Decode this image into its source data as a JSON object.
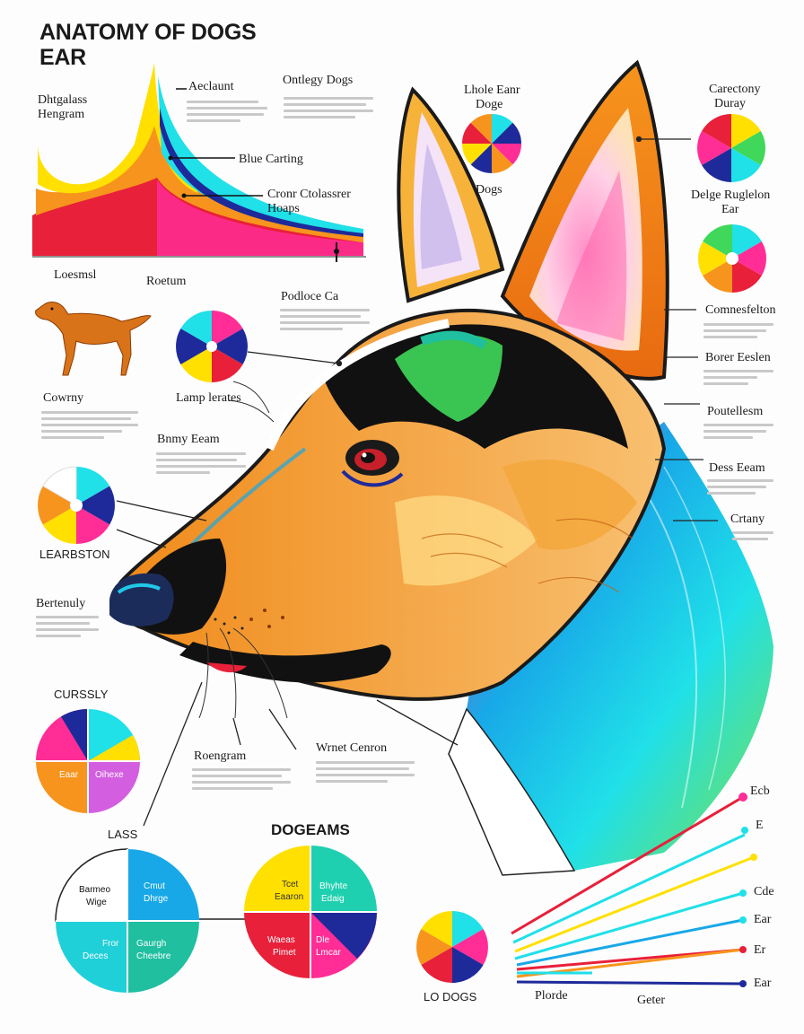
{
  "title_line1": "ANATOMY OF DOGS",
  "title_line2": "EAR",
  "labels": {
    "histogram_1": "Dhtgalass",
    "histogram_2": "Hengram",
    "aeclaunt": "Aeclaunt",
    "ontlegy": "Ontlegy Dogs",
    "blue_carting": "Blue Carting",
    "cronr_1": "Cronr Ctolassrer",
    "cronr_2": "Hoaps",
    "loesmsl": "Loesmsl",
    "roetum": "Roetum",
    "lhole_1": "Lhole Eanr",
    "lhole_2": "Doge",
    "dogs": "Dogs",
    "carectony_1": "Carectony",
    "carectony_2": "Duray",
    "delge_1": "Delge Ruglelon",
    "delge_2": "Ear",
    "podloce": "Podloce Ca",
    "comnesfelton": "Comnesfelton",
    "cowrny": "Cowrny",
    "lamp": "Lamp lerates",
    "borer": "Borer Eeslen",
    "poutellesm": "Poutellesm",
    "bnmy": "Bnmy Eeam",
    "dess": "Dess Eeam",
    "crtany": "Crtany",
    "learbston": "LEARBSTON",
    "bertenuly": "Bertenuly",
    "curssly": "CURSSLY",
    "roengram": "Roengram",
    "wrnet": "Wrnet Cenron",
    "lass": "LASS",
    "dogeams": "DOGEAMS",
    "lo_dogs": "LO DOGS",
    "plorde": "Plorde",
    "geter": "Geter"
  },
  "pie_labels": {
    "eaar": "Eaar",
    "oihexe": "Oihexe",
    "barmeo": "Barmeo",
    "wige": "Wige",
    "cmut": "Cmut",
    "dhrge": "Dhrge",
    "fror": "Fror",
    "deces": "Deces",
    "gaurgh": "Gaurgh",
    "cheebre": "Cheebre",
    "tcet": "Tcet",
    "eaaron": "Eaaron",
    "bhyhte": "Bhyhte",
    "edaig": "Edaig",
    "waeas": "Waeas",
    "pimet": "Pimet",
    "dle": "Dle",
    "lmcar": "Lmcar"
  },
  "line_legend": [
    "Ecb",
    "E",
    "Cde",
    "Ear",
    "Er",
    "Ear"
  ],
  "colors": {
    "red": "#e8203a",
    "orange": "#f7941d",
    "yellow": "#ffe000",
    "cyan": "#20e0e8",
    "teal": "#1fbfa0",
    "blue": "#1e2a9a",
    "navy": "#0e1a6a",
    "magenta": "#ff2d95",
    "violet": "#d35fe0",
    "sky": "#18a8e8"
  },
  "icons": [
    "dog-silhouette-icon"
  ]
}
